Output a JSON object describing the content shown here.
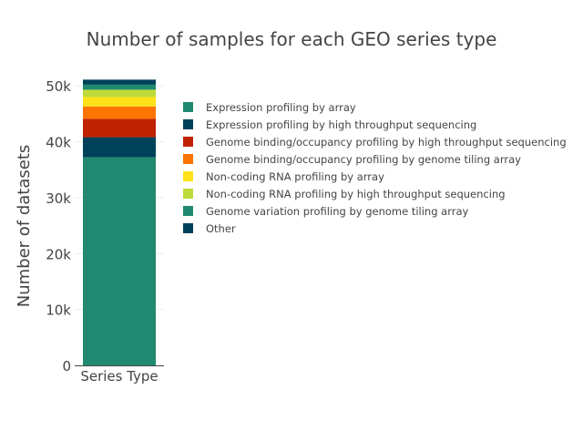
{
  "chart_data": {
    "type": "bar",
    "stacked": true,
    "title": "Number of samples for each GEO series type",
    "xlabel": "",
    "ylabel": "Number of datasets",
    "categories": [
      "Series Type"
    ],
    "ylim": [
      0,
      51000
    ],
    "yticks": [
      0,
      10000,
      20000,
      30000,
      40000,
      50000
    ],
    "ytick_labels": [
      "0",
      "10k",
      "20k",
      "30k",
      "40k",
      "50k"
    ],
    "grid": true,
    "legend_position": "right",
    "series": [
      {
        "name": "Expression profiling by array",
        "values": [
          37200
        ],
        "color": "#1f8a70"
      },
      {
        "name": "Expression profiling by high throughput sequencing",
        "values": [
          3600
        ],
        "color": "#00425a"
      },
      {
        "name": "Genome binding/occupancy profiling by high throughput sequencing",
        "values": [
          3300
        ],
        "color": "#bf2200"
      },
      {
        "name": "Genome binding/occupancy profiling by genome tiling array",
        "values": [
          2200
        ],
        "color": "#fd7400"
      },
      {
        "name": "Non-coding RNA profiling by array",
        "values": [
          1700
        ],
        "color": "#ffe11a"
      },
      {
        "name": "Non-coding RNA profiling by high throughput sequencing",
        "values": [
          1300
        ],
        "color": "#bedb39"
      },
      {
        "name": "Genome variation profiling by genome tiling array",
        "values": [
          900
        ],
        "color": "#1f8a70"
      },
      {
        "name": "Other",
        "values": [
          900
        ],
        "color": "#00425a"
      }
    ]
  }
}
